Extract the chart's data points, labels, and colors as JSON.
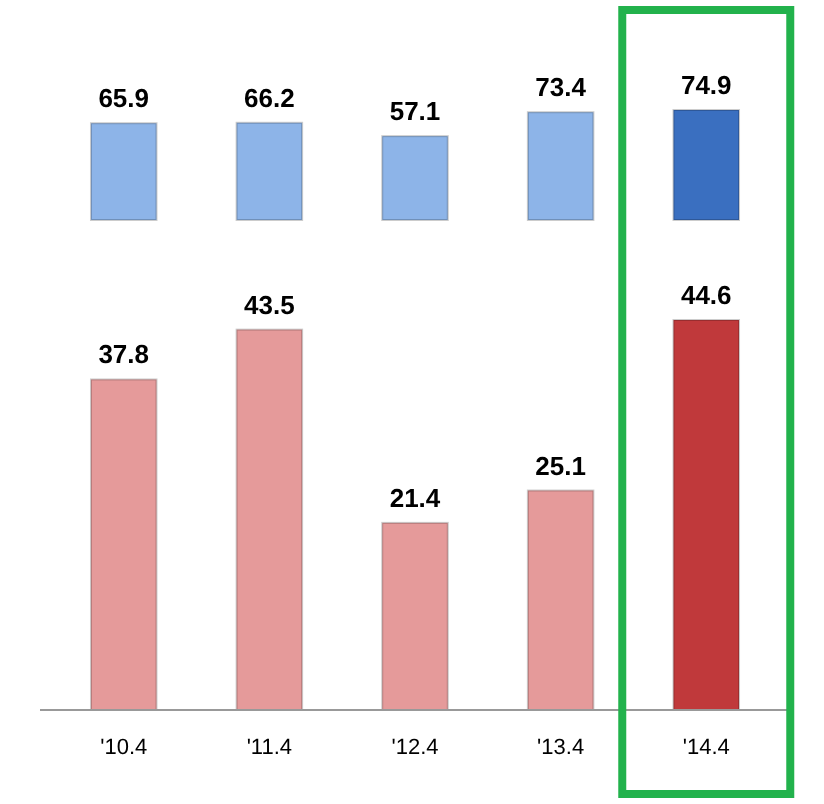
{
  "chart_data": [
    {
      "type": "bar",
      "categories": [
        null,
        null,
        null,
        null,
        null
      ],
      "values": [
        65.9,
        66.2,
        57.1,
        73.4,
        74.9
      ],
      "colors": [
        "#8db4e8",
        "#8db4e8",
        "#8db4e8",
        "#8db4e8",
        "#3a6fc0"
      ],
      "data_labels": true,
      "tick_labels": false
    },
    {
      "type": "bar",
      "categories": [
        "'10.4",
        "'11.4",
        "'12.4",
        "'13.4",
        "'14.4"
      ],
      "values": [
        37.8,
        43.5,
        21.4,
        25.1,
        44.6
      ],
      "colors": [
        "#e59a9a",
        "#e59a9a",
        "#e59a9a",
        "#e59a9a",
        "#c0393b"
      ],
      "data_labels": true
    }
  ]
}
